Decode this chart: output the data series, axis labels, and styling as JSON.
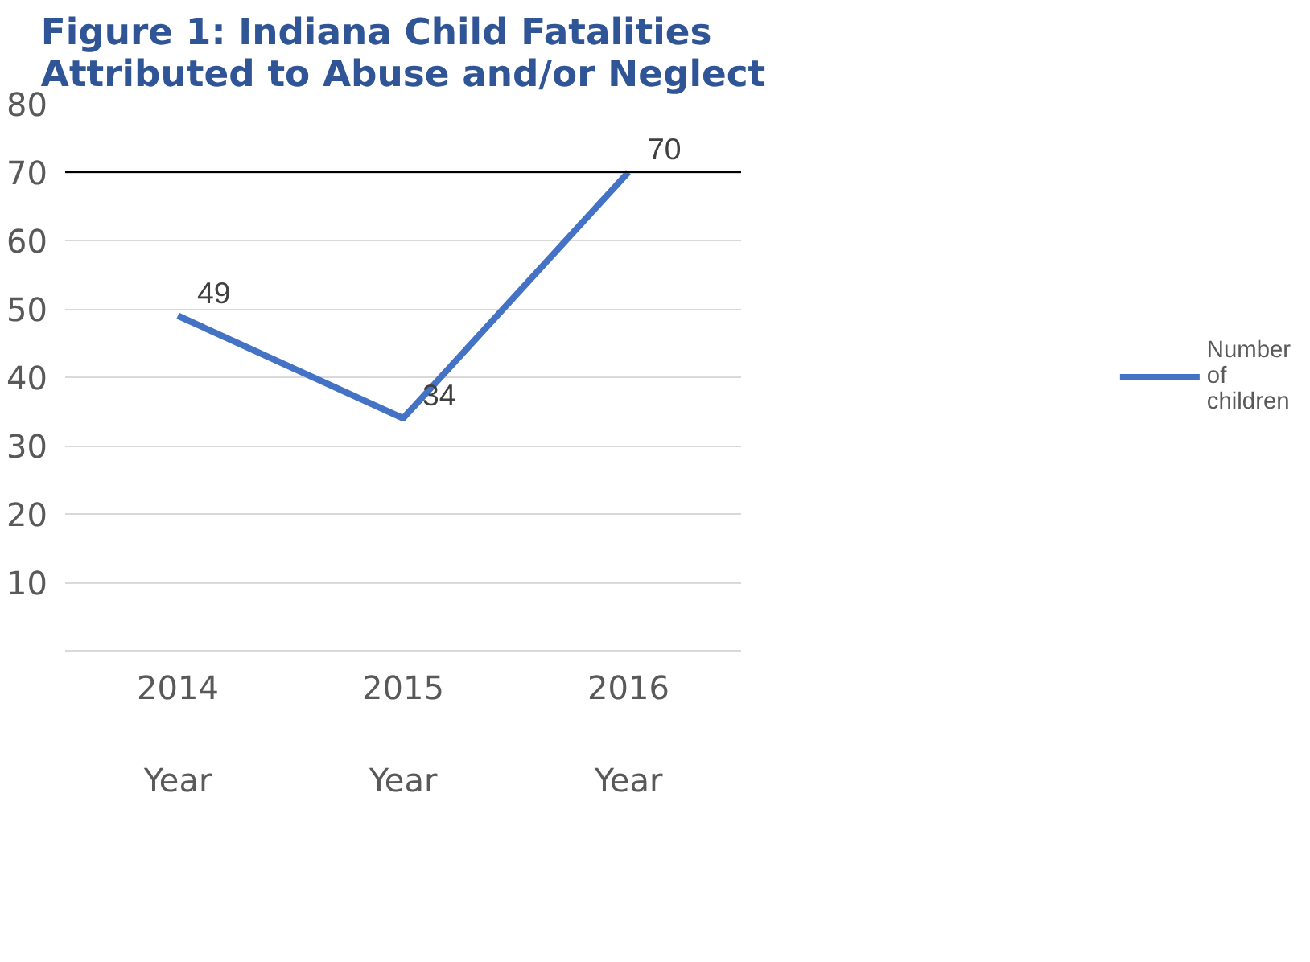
{
  "chart_data": {
    "type": "line",
    "title": "Figure 1: Indiana Child Fatalities\nAttributed to Abuse and/or Neglect",
    "categories": [
      "2014\n\nYear",
      "2015\n\nYear",
      "2016\n\nYear"
    ],
    "series": [
      {
        "name": "Number of children",
        "color": "#4472c4",
        "values": [
          49,
          34,
          70
        ]
      }
    ],
    "ylim": [
      0,
      80
    ],
    "yticks": [
      10,
      20,
      30,
      40,
      50,
      60,
      70,
      80
    ],
    "grid": "y",
    "legend": "right",
    "data_labels": true,
    "ref_lines": [
      {
        "axis": "y",
        "value": 70,
        "color": "#000000"
      }
    ]
  }
}
